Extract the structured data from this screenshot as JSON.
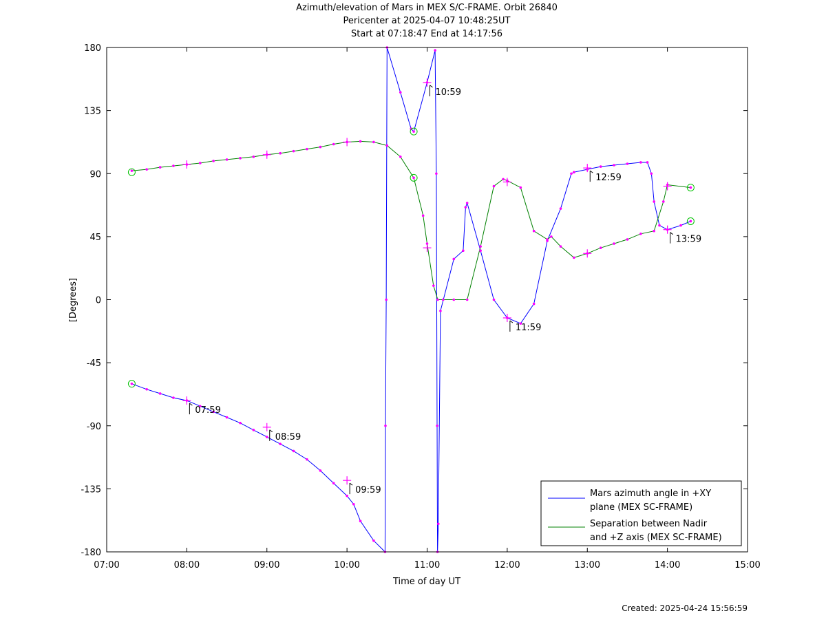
{
  "chart_data": {
    "type": "line",
    "title_lines": [
      "Azimuth/elevation of Mars in MEX S/C-FRAME.  Orbit 26840",
      "Pericenter at 2025-04-07 10:48:25UT",
      "Start at 07:18:47 End at 14:17:56"
    ],
    "xlabel": "Time of day UT",
    "ylabel": "[Degrees]",
    "xlim": [
      7.0,
      15.0
    ],
    "ylim": [
      -180,
      180
    ],
    "xticks": [
      7,
      8,
      9,
      10,
      11,
      12,
      13,
      14,
      15
    ],
    "xtick_labels": [
      "07:00",
      "08:00",
      "09:00",
      "10:00",
      "11:00",
      "12:00",
      "13:00",
      "14:00",
      "15:00"
    ],
    "yticks": [
      180,
      135,
      90,
      45,
      0,
      -45,
      -90,
      -135,
      -180
    ],
    "ytick_labels": [
      "180",
      "135",
      "90",
      "45",
      "0",
      "-45",
      "-90",
      "-135",
      "-180"
    ],
    "legend_position": "bottom-right",
    "series": [
      {
        "name": "Mars azimuth angle in +XY\nplane (MEX SC-FRAME)",
        "color": "#0000ff",
        "x": [
          7.313,
          7.5,
          7.667,
          7.833,
          8.0,
          8.167,
          8.333,
          8.5,
          8.667,
          8.833,
          9.0,
          9.167,
          9.333,
          9.5,
          9.667,
          9.833,
          10.0,
          10.083,
          10.167,
          10.333,
          10.475,
          10.48,
          10.49,
          10.5,
          10.667,
          10.8,
          10.833,
          11.0,
          11.1,
          11.115,
          11.125,
          11.13,
          11.14,
          11.167,
          11.333,
          11.45,
          11.48,
          11.5,
          11.667,
          11.833,
          12.0,
          12.167,
          12.333,
          12.5,
          12.667,
          12.8,
          12.833,
          13.0,
          13.167,
          13.333,
          13.5,
          13.667,
          13.75,
          13.8,
          13.833,
          13.9,
          14.0,
          14.167,
          14.29
        ],
        "y": [
          -60,
          -64,
          -67,
          -70,
          -72,
          -76,
          -80,
          -84,
          -88,
          -93,
          -98,
          -103,
          -108,
          -114,
          -122,
          -131,
          -140,
          -146,
          -158,
          -172,
          -180,
          -90,
          0,
          180,
          148,
          122,
          120,
          155,
          178,
          90,
          -90,
          -180,
          -160,
          -8,
          29,
          35,
          66,
          69,
          35,
          0,
          -13,
          -17,
          -3,
          42,
          65,
          90,
          91,
          93,
          95,
          96,
          97,
          98,
          98,
          90,
          70,
          53,
          50,
          53,
          56
        ]
      },
      {
        "name": "Separation between Nadir\nand +Z axis (MEX SC-FRAME)",
        "color": "#008000",
        "x": [
          7.313,
          7.5,
          7.667,
          7.833,
          8.0,
          8.167,
          8.333,
          8.5,
          8.667,
          8.833,
          9.0,
          9.167,
          9.333,
          9.5,
          9.667,
          9.833,
          10.0,
          10.167,
          10.333,
          10.5,
          10.667,
          10.833,
          10.95,
          11.0,
          11.08,
          11.133,
          11.2,
          11.333,
          11.5,
          11.667,
          11.833,
          11.95,
          12.0,
          12.167,
          12.333,
          12.5,
          12.55,
          12.667,
          12.833,
          13.0,
          13.167,
          13.333,
          13.5,
          13.667,
          13.833,
          13.95,
          14.0,
          14.29
        ],
        "y": [
          92,
          93,
          94.5,
          95.5,
          96.5,
          97.5,
          99,
          100,
          101,
          102,
          103.5,
          104.5,
          106,
          107.5,
          109,
          111,
          112.5,
          113,
          112.5,
          110,
          102,
          87,
          60,
          40,
          10,
          0,
          0,
          0,
          0,
          38,
          81,
          86,
          85,
          80,
          49,
          43,
          45,
          38,
          30,
          33,
          37,
          40,
          43,
          47,
          49,
          70,
          82,
          80
        ]
      }
    ],
    "big_markers": [
      {
        "x": 8.0,
        "y": -72
      },
      {
        "x": 9.0,
        "y": -91
      },
      {
        "x": 10.0,
        "y": -129
      },
      {
        "x": 11.0,
        "y": 155
      },
      {
        "x": 12.0,
        "y": -13
      },
      {
        "x": 13.0,
        "y": 94
      },
      {
        "x": 14.0,
        "y": 50
      },
      {
        "x": 8.0,
        "y": 96.5
      },
      {
        "x": 9.0,
        "y": 103.5
      },
      {
        "x": 10.0,
        "y": 112.5
      },
      {
        "x": 11.0,
        "y": 37
      },
      {
        "x": 12.0,
        "y": 84
      },
      {
        "x": 13.0,
        "y": 33
      },
      {
        "x": 14.0,
        "y": 81
      }
    ],
    "circle_markers": [
      {
        "x": 7.313,
        "y": 91
      },
      {
        "x": 7.313,
        "y": -60
      },
      {
        "x": 10.833,
        "y": 120
      },
      {
        "x": 10.833,
        "y": 87
      },
      {
        "x": 14.29,
        "y": 80
      },
      {
        "x": 14.29,
        "y": 56
      }
    ],
    "annotations": [
      {
        "text": "07:59",
        "x": 8.0,
        "y": -72
      },
      {
        "text": "08:59",
        "x": 9.0,
        "y": -91
      },
      {
        "text": "09:59",
        "x": 10.0,
        "y": -129
      },
      {
        "text": "10:59",
        "x": 11.0,
        "y": 155
      },
      {
        "text": "11:59",
        "x": 12.0,
        "y": -13
      },
      {
        "text": "12:59",
        "x": 13.0,
        "y": 94
      },
      {
        "text": "13:59",
        "x": 14.0,
        "y": 50
      }
    ],
    "marker_color": "#ff00ff",
    "circle_color": "#00c000",
    "footer": "Created: 2025-04-24 15:56:59"
  }
}
